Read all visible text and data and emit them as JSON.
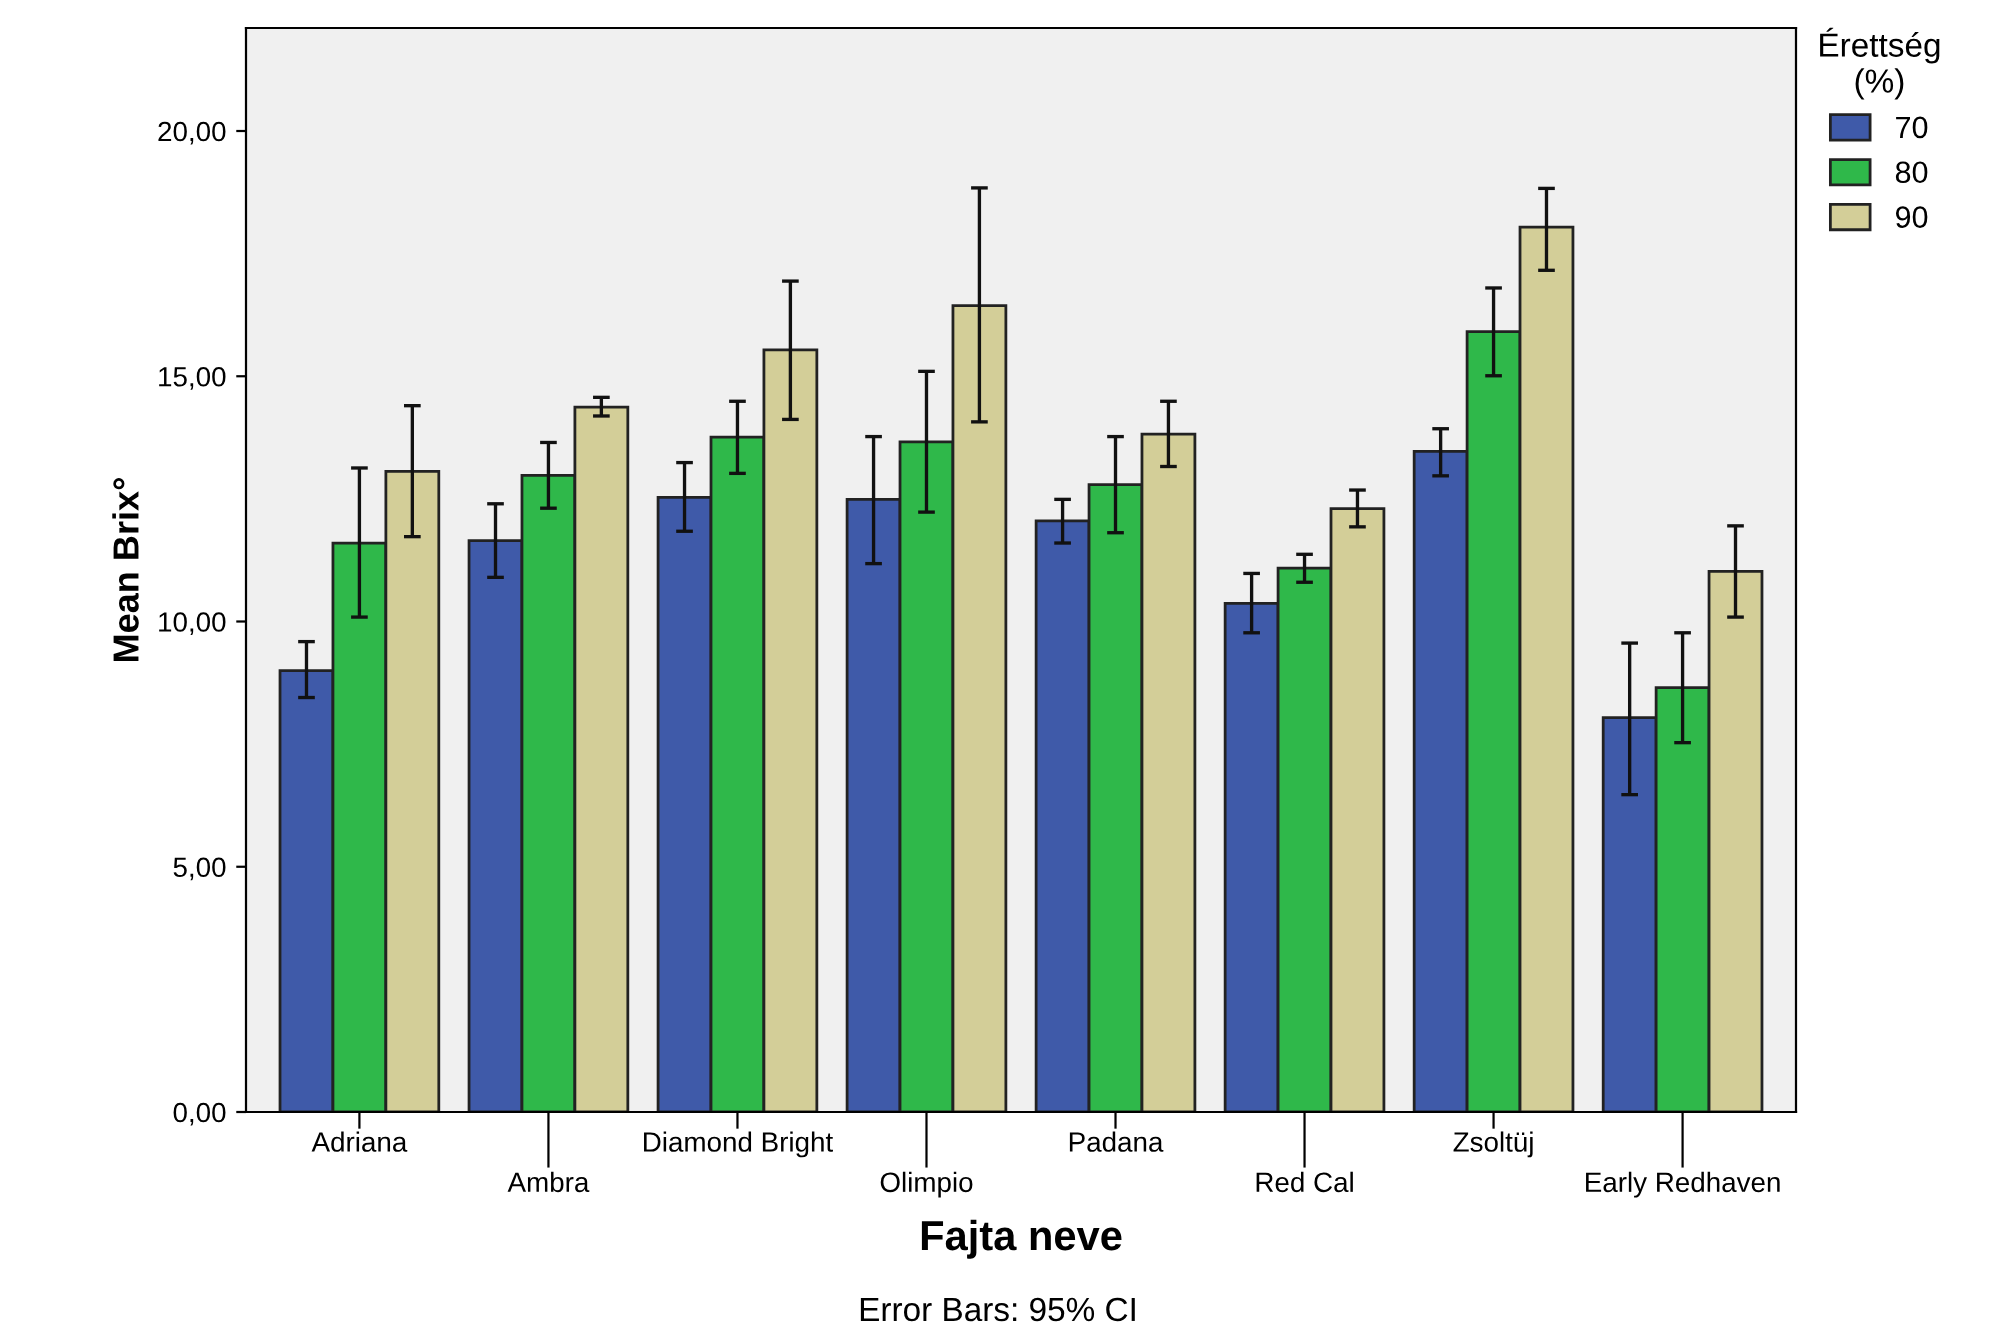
{
  "chart_data": {
    "type": "bar",
    "xlabel": "Fajta neve",
    "ylabel": "Mean Brix°",
    "legend_title": "Érettség\n(%)",
    "categories": [
      "Adriana",
      "Ambra",
      "Diamond Bright",
      "Olimpio",
      "Padana",
      "Red Cal",
      "Zsoltüj",
      "Early Redhaven"
    ],
    "series": [
      {
        "name": "70",
        "color": "#3f5aa9",
        "values": [
          9.0,
          11.65,
          12.53,
          12.49,
          12.05,
          10.37,
          13.47,
          8.04
        ],
        "errors": [
          [
            8.45,
            9.59
          ],
          [
            10.9,
            12.4
          ],
          [
            11.84,
            13.24
          ],
          [
            11.18,
            13.77
          ],
          [
            11.6,
            12.49
          ],
          [
            9.77,
            10.98
          ],
          [
            12.97,
            13.93
          ],
          [
            6.47,
            9.56
          ]
        ]
      },
      {
        "name": "80",
        "color": "#2fb84a",
        "values": [
          11.6,
          12.98,
          13.76,
          13.66,
          12.79,
          11.09,
          15.91,
          8.65
        ],
        "errors": [
          [
            10.09,
            13.13
          ],
          [
            12.31,
            13.65
          ],
          [
            13.02,
            14.49
          ],
          [
            12.23,
            15.1
          ],
          [
            11.81,
            13.77
          ],
          [
            10.8,
            11.37
          ],
          [
            15.01,
            16.8
          ],
          [
            7.53,
            9.77
          ]
        ]
      },
      {
        "name": "90",
        "color": "#d3ce98",
        "values": [
          13.06,
          14.37,
          15.54,
          16.44,
          13.82,
          12.3,
          18.04,
          11.02
        ],
        "errors": [
          [
            11.73,
            14.4
          ],
          [
            14.19,
            14.57
          ],
          [
            14.12,
            16.94
          ],
          [
            14.07,
            18.84
          ],
          [
            13.16,
            14.49
          ],
          [
            11.93,
            12.68
          ],
          [
            17.16,
            18.83
          ],
          [
            10.09,
            11.95
          ]
        ]
      }
    ],
    "ylim": [
      0,
      22.1
    ],
    "yticks": [
      {
        "value": 0,
        "label": "0,00"
      },
      {
        "value": 5,
        "label": "5,00"
      },
      {
        "value": 10,
        "label": "10,00"
      },
      {
        "value": 15,
        "label": "15,00"
      },
      {
        "value": 20,
        "label": "20,00"
      }
    ],
    "grid": false,
    "legend": "top right",
    "annotations": [
      "Error Bars: 95% CI"
    ]
  }
}
